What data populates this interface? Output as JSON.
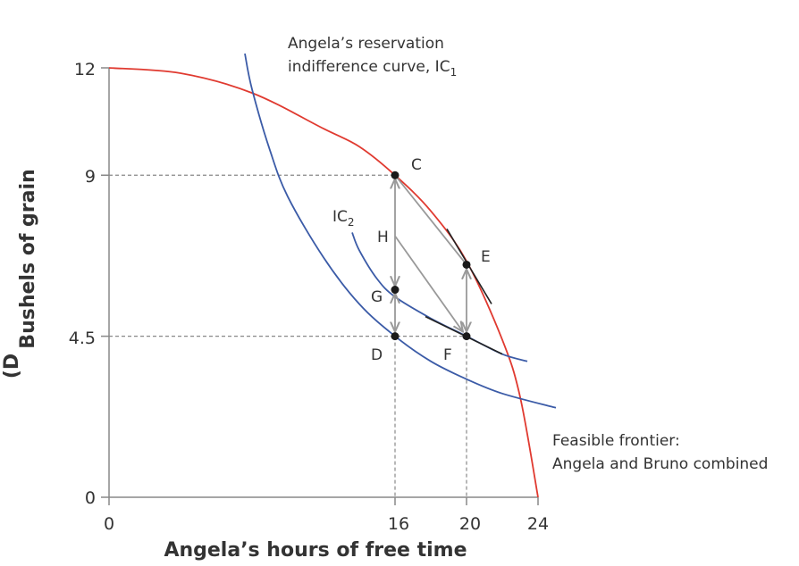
{
  "chart_data": {
    "type": "line",
    "xlabel": "Angela’s hours of free time",
    "ylabel": "Bushels of grain",
    "ylabel_clipped_prefix": "(D",
    "xlim": [
      0,
      24
    ],
    "ylim": [
      0,
      12
    ],
    "x_ticks": [
      "0",
      "16",
      "20",
      "24"
    ],
    "y_ticks": [
      "0",
      "4.5",
      "9",
      "12"
    ],
    "grid": false,
    "colors": {
      "frontier": "#e03a30",
      "indifference": "#3b5ba7",
      "arrows": "#999999",
      "tangent": "#222222",
      "guides": "#888888"
    },
    "series": [
      {
        "name": "Feasible frontier: Angela and Bruno combined",
        "x": [
          0,
          4,
          8,
          12,
          14,
          16,
          18,
          20,
          22,
          23,
          24
        ],
        "y": [
          12,
          11.85,
          11.3,
          10.3,
          9.8,
          9,
          8,
          6.6,
          4.4,
          2.8,
          0
        ]
      },
      {
        "name": "Angela’s reservation indifference curve, IC1",
        "x": [
          7.6,
          8,
          9,
          10,
          12,
          14,
          16,
          18,
          20,
          22,
          25
        ],
        "y": [
          12.4,
          11.4,
          9.7,
          8.4,
          6.7,
          5.4,
          4.5,
          3.8,
          3.3,
          2.9,
          2.5
        ]
      },
      {
        "name": "IC2",
        "x": [
          13.6,
          14,
          15,
          16,
          18,
          20,
          22,
          23.4
        ],
        "y": [
          7.4,
          6.9,
          6.1,
          5.6,
          5.0,
          4.5,
          4.0,
          3.8
        ]
      }
    ],
    "points": [
      {
        "label": "C",
        "x": 16,
        "y": 9
      },
      {
        "label": "D",
        "x": 16,
        "y": 4.5
      },
      {
        "label": "E",
        "x": 20,
        "y": 6.5
      },
      {
        "label": "F",
        "x": 20,
        "y": 4.5
      },
      {
        "label": "G",
        "x": 16,
        "y": 5.8
      },
      {
        "label": "H",
        "x": 16,
        "y": 7.3
      }
    ],
    "annotations": {
      "ic1_line1": "Angela’s reservation",
      "ic1_line2_prefix": "indifference curve, IC",
      "ic1_sub": "1",
      "ic2_prefix": "IC",
      "ic2_sub": "2",
      "frontier_line1": "Feasible frontier:",
      "frontier_line2": "Angela and Bruno combined"
    }
  }
}
